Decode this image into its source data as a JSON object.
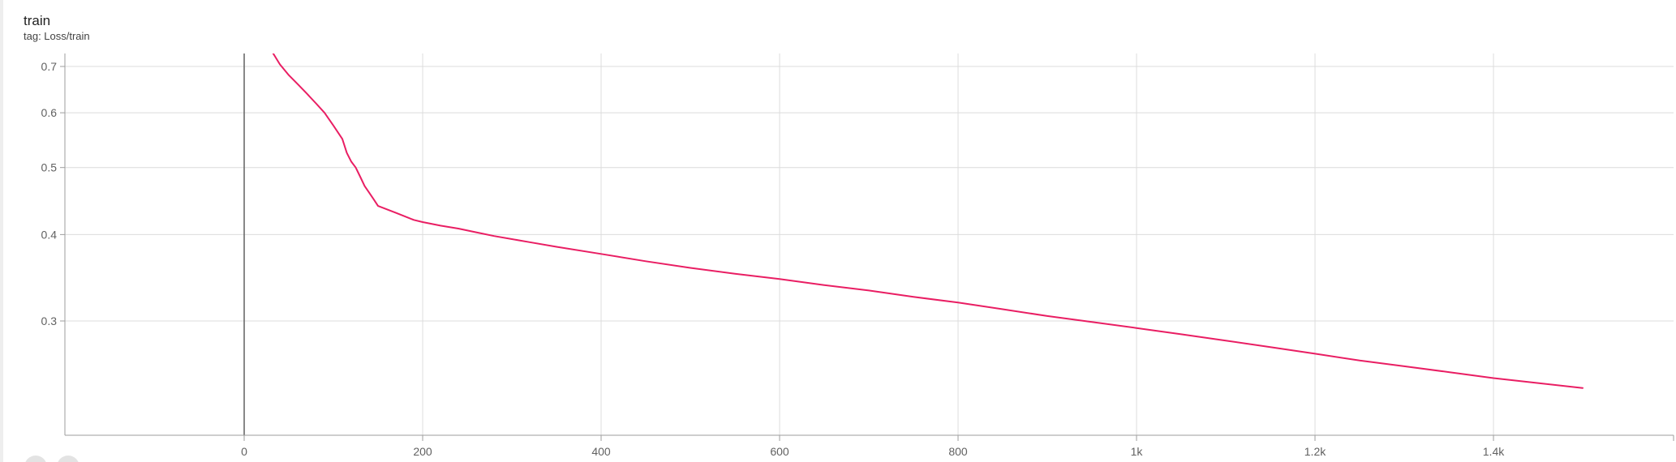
{
  "card": {
    "title": "train",
    "tag": "tag: Loss/train"
  },
  "colors": {
    "series": "#e91e63",
    "grid": "#dcdcdc",
    "axis": "#9e9e9e",
    "zero_line": "#616161"
  },
  "chart_data": {
    "type": "line",
    "title": "train",
    "subtitle": "tag: Loss/train",
    "x_scale": "linear",
    "y_scale": "log",
    "xlim": [
      -200,
      1600
    ],
    "ylim": [
      0.22,
      0.73
    ],
    "x_ticks": [
      {
        "value": 0,
        "label": "0"
      },
      {
        "value": 200,
        "label": "200"
      },
      {
        "value": 400,
        "label": "400"
      },
      {
        "value": 600,
        "label": "600"
      },
      {
        "value": 800,
        "label": "800"
      },
      {
        "value": 1000,
        "label": "1k"
      },
      {
        "value": 1200,
        "label": "1.2k"
      },
      {
        "value": 1400,
        "label": "1.4k"
      }
    ],
    "y_ticks": [
      {
        "value": 0.3,
        "label": "0.3"
      },
      {
        "value": 0.4,
        "label": "0.4"
      },
      {
        "value": 0.5,
        "label": "0.5"
      },
      {
        "value": 0.6,
        "label": "0.6"
      },
      {
        "value": 0.7,
        "label": "0.7"
      }
    ],
    "grid": true,
    "legend": "none",
    "series": [
      {
        "x": [
          30,
          40,
          50,
          60,
          70,
          80,
          90,
          100,
          110,
          115,
          120,
          125,
          130,
          135,
          140,
          145,
          150,
          160,
          170,
          180,
          190,
          200,
          220,
          240,
          260,
          280,
          300,
          320,
          350,
          400,
          450,
          500,
          550,
          600,
          650,
          700,
          750,
          800,
          850,
          900,
          950,
          1000,
          1050,
          1100,
          1150,
          1200,
          1250,
          1300,
          1350,
          1400,
          1450,
          1500
        ],
        "y": [
          0.74,
          0.705,
          0.68,
          0.66,
          0.64,
          0.62,
          0.6,
          0.575,
          0.55,
          0.525,
          0.51,
          0.5,
          0.485,
          0.47,
          0.46,
          0.45,
          0.44,
          0.435,
          0.43,
          0.425,
          0.42,
          0.417,
          0.412,
          0.408,
          0.403,
          0.398,
          0.394,
          0.39,
          0.384,
          0.375,
          0.366,
          0.358,
          0.351,
          0.345,
          0.338,
          0.332,
          0.325,
          0.319,
          0.312,
          0.305,
          0.299,
          0.293,
          0.287,
          0.281,
          0.275,
          0.269,
          0.263,
          0.258,
          0.253,
          0.248,
          0.244,
          0.24
        ]
      }
    ]
  }
}
